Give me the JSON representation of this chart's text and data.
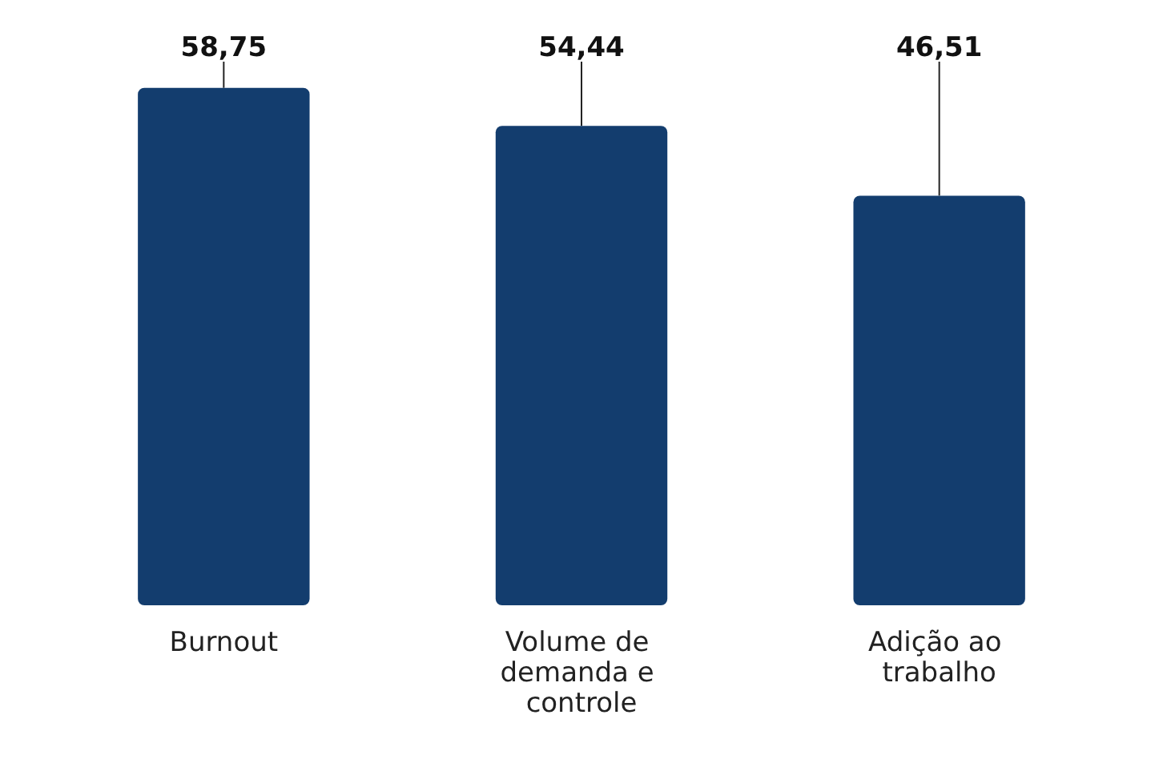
{
  "chart_data": {
    "type": "bar",
    "categories": [
      "Burnout",
      "Volume de demanda e controle",
      "Adição ao trabalho"
    ],
    "values": [
      58.75,
      54.44,
      46.51
    ],
    "color": "#133d6e",
    "value_labels": [
      "58,75",
      "54,44",
      "46,51"
    ]
  }
}
